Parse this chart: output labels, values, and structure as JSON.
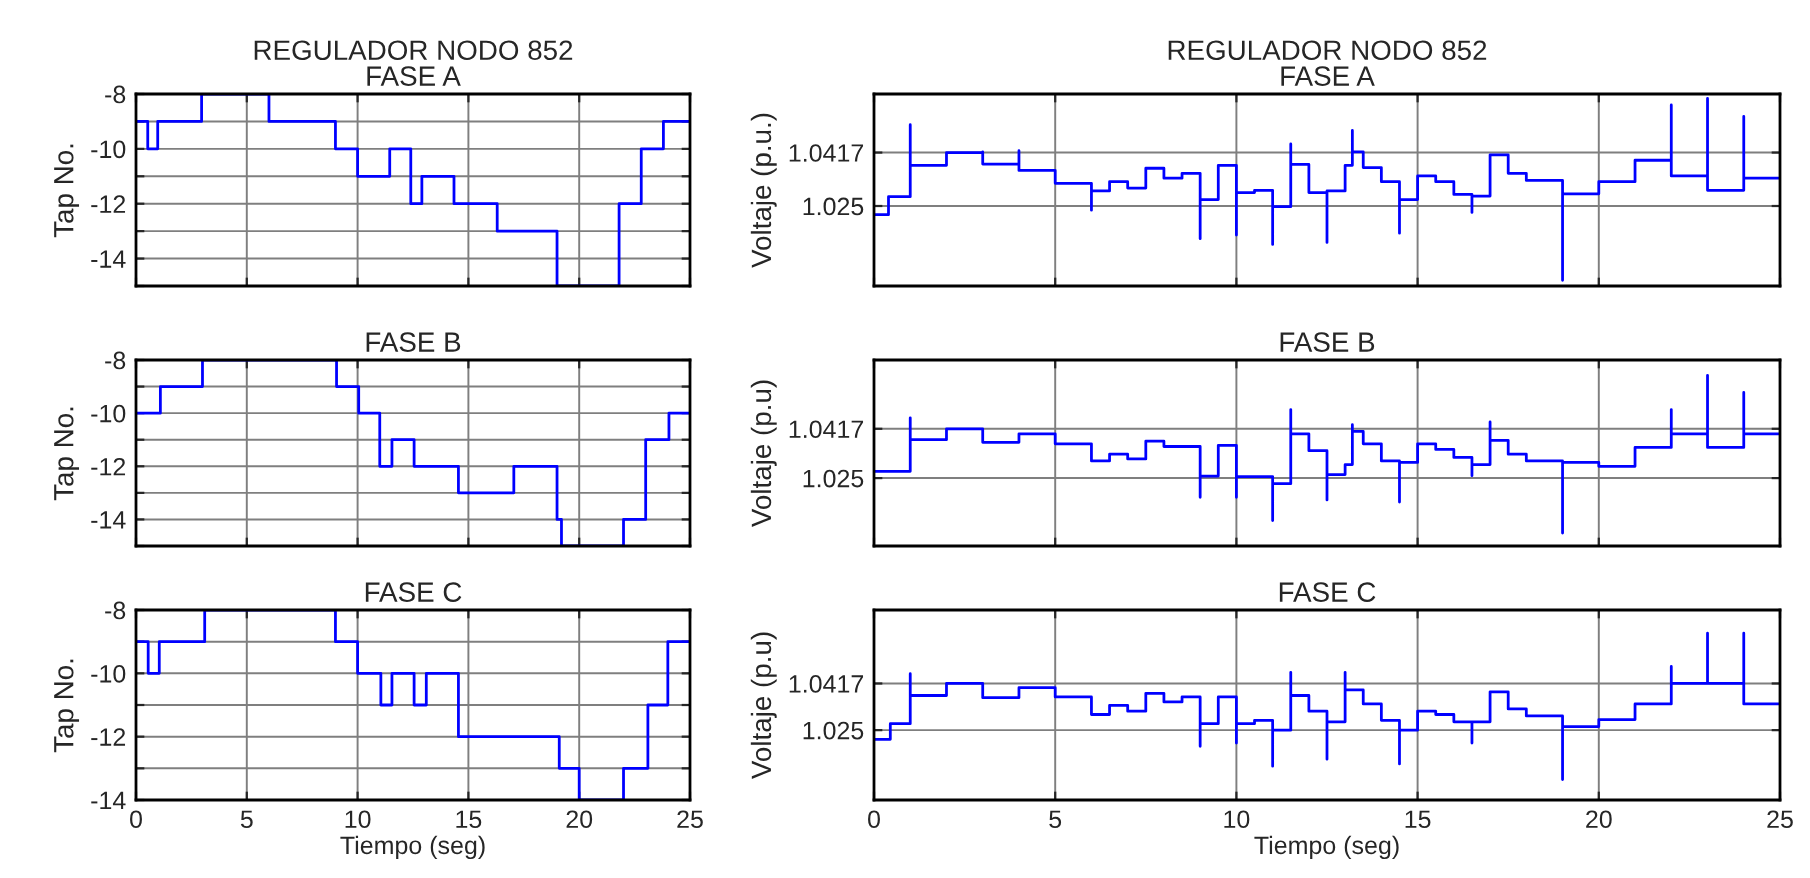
{
  "chart_data": [
    {
      "type": "step",
      "title": "REGULADOR NODO 852\nFASE A",
      "ylabel": "Tap No.",
      "xlim": [
        0,
        25
      ],
      "xticks": [
        0,
        5,
        10,
        15,
        20,
        25
      ],
      "ylim": [
        -15,
        -8
      ],
      "yticks": [
        -8,
        {
          "value": -9,
          "label": null
        },
        -10,
        {
          "value": -11,
          "label": null
        },
        -12,
        {
          "value": -13,
          "label": null
        },
        -14,
        {
          "value": -15,
          "label": null
        }
      ],
      "grid": true,
      "tick_labels": "y",
      "series": [
        {
          "color": "#0000ff",
          "x": [
            0,
            0.53,
            0.98,
            2.96,
            6.0,
            9.0,
            10.0,
            11.45,
            12.4,
            12.9,
            14.35,
            16.3,
            19.0,
            21.8,
            22.8,
            23.8,
            25
          ],
          "values": [
            -9,
            -10,
            -9,
            -8,
            -9,
            -10,
            -11,
            -10,
            -12,
            -11,
            -12,
            -13,
            -15,
            -12,
            -10,
            -9,
            -9
          ]
        }
      ]
    },
    {
      "type": "step",
      "title": "REGULADOR NODO 852\nFASE A",
      "ylabel": "Voltaje (p.u.)",
      "xlim": [
        0,
        25
      ],
      "xticks": [
        0,
        5,
        10,
        15,
        20,
        25
      ],
      "ylim": [
        1.0,
        1.06
      ],
      "yticks": [
        1.025,
        1.0417
      ],
      "grid": true,
      "tick_labels": "y",
      "series": [
        {
          "color": "#0000ff",
          "x": [
            0,
            0.4,
            1.0,
            1.0,
            2.0,
            3.0,
            3.0,
            4.0,
            4.0,
            5.0,
            6.0,
            6.0,
            6.5,
            7.0,
            7.5,
            8.0,
            8.5,
            9.0,
            9.0,
            9.5,
            10.0,
            10.0,
            10.5,
            11.0,
            11.0,
            11.5,
            11.5,
            12.0,
            12.5,
            12.5,
            13.0,
            13.2,
            13.2,
            13.5,
            14.0,
            14.5,
            14.5,
            15.0,
            15.5,
            16.0,
            16.5,
            16.5,
            17.0,
            17.5,
            18.0,
            19.0,
            19.0,
            20.0,
            21.0,
            22.0,
            22.0,
            23.0,
            23.0,
            24.0,
            24.0,
            25.0
          ],
          "values": [
            1.0223,
            1.0279,
            1.0504,
            1.0377,
            1.0417,
            1.0419,
            1.0381,
            1.0423,
            1.0361,
            1.0321,
            1.0237,
            1.0297,
            1.0326,
            1.0306,
            1.0368,
            1.0337,
            1.0352,
            1.0148,
            1.027,
            1.0377,
            1.0159,
            1.0292,
            1.0299,
            1.013,
            1.0248,
            1.0444,
            1.038,
            1.0292,
            1.0136,
            1.0297,
            1.0377,
            1.0486,
            1.0419,
            1.037,
            1.0326,
            1.0165,
            1.027,
            1.0344,
            1.0326,
            1.0286,
            1.023,
            1.0281,
            1.041,
            1.0352,
            1.033,
            1.0018,
            1.0288,
            1.0326,
            1.0393,
            1.0566,
            1.0344,
            1.0586,
            1.0299,
            1.053,
            1.0337,
            1.0337
          ]
        }
      ]
    },
    {
      "type": "step",
      "title": "FASE B",
      "ylabel": "Tap No.",
      "xlim": [
        0,
        25
      ],
      "xticks": [
        0,
        5,
        10,
        15,
        20,
        25
      ],
      "ylim": [
        -15,
        -8
      ],
      "yticks": [
        -8,
        {
          "value": -9,
          "label": null
        },
        -10,
        {
          "value": -11,
          "label": null
        },
        -12,
        {
          "value": -13,
          "label": null
        },
        -14,
        {
          "value": -15,
          "label": null
        }
      ],
      "grid": true,
      "tick_labels": "y",
      "series": [
        {
          "color": "#0000ff",
          "x": [
            0,
            1.1,
            3.0,
            9.05,
            10.05,
            11.0,
            11.55,
            12.55,
            14.55,
            17.05,
            19.0,
            19.2,
            22.0,
            23.0,
            24.05,
            25
          ],
          "values": [
            -10,
            -9,
            -8,
            -9,
            -10,
            -12,
            -11,
            -12,
            -13,
            -12,
            -14,
            -15,
            -14,
            -11,
            -10,
            -10
          ]
        }
      ]
    },
    {
      "type": "step",
      "title": "FASE B",
      "ylabel": "Voltaje (p.u)",
      "xlim": [
        0,
        25
      ],
      "xticks": [
        0,
        5,
        10,
        15,
        20,
        25
      ],
      "ylim": [
        1.002,
        1.065
      ],
      "yticks": [
        1.025,
        1.0417
      ],
      "grid": true,
      "tick_labels": "y",
      "series": [
        {
          "color": "#0000ff",
          "x": [
            0,
            1.0,
            1.0,
            2.0,
            3.0,
            4.0,
            5.0,
            6.0,
            6.5,
            7.0,
            7.5,
            8.0,
            9.0,
            9.0,
            9.5,
            10.0,
            10.0,
            11.0,
            11.0,
            11.5,
            11.5,
            12.0,
            12.5,
            12.5,
            13.0,
            13.2,
            13.2,
            13.5,
            14.0,
            14.5,
            14.5,
            15.0,
            15.5,
            16.0,
            16.5,
            16.5,
            17.0,
            17.0,
            17.5,
            18.0,
            19.0,
            19.0,
            20.0,
            21.0,
            22.0,
            22.0,
            23.0,
            23.0,
            24.0,
            24.0,
            25.0
          ],
          "values": [
            1.0273,
            1.0454,
            1.038,
            1.0417,
            1.0371,
            1.04,
            1.0366,
            1.0308,
            1.0331,
            1.0315,
            1.0375,
            1.0357,
            1.0185,
            1.0257,
            1.0361,
            1.0185,
            1.0255,
            1.0106,
            1.0231,
            1.0482,
            1.04,
            1.0343,
            1.0176,
            1.0262,
            1.0296,
            1.0431,
            1.0408,
            1.0366,
            1.0308,
            1.0169,
            1.0303,
            1.0366,
            1.0347,
            1.032,
            1.0258,
            1.0296,
            1.044,
            1.0378,
            1.0331,
            1.0308,
            1.0064,
            1.0303,
            1.029,
            1.0354,
            1.0482,
            1.04,
            1.0598,
            1.0354,
            1.054,
            1.04,
            1.04
          ]
        }
      ]
    },
    {
      "type": "step",
      "title": "FASE C",
      "ylabel": "Tap No.",
      "xlabel": "Tiempo (seg)",
      "xlim": [
        0,
        25
      ],
      "xticks": [
        0,
        5,
        10,
        15,
        20,
        25
      ],
      "ylim": [
        -14,
        -8
      ],
      "yticks": [
        -8,
        {
          "value": -9,
          "label": null
        },
        -10,
        {
          "value": -11,
          "label": null
        },
        -12,
        {
          "value": -13,
          "label": null
        },
        -14
      ],
      "grid": true,
      "series": [
        {
          "color": "#0000ff",
          "x": [
            0,
            0.55,
            1.05,
            3.1,
            9.0,
            10.0,
            11.05,
            11.55,
            12.55,
            13.1,
            14.55,
            19.1,
            20.0,
            22.0,
            23.1,
            24.0,
            25
          ],
          "values": [
            -9,
            -10,
            -9,
            -8,
            -9,
            -10,
            -11,
            -10,
            -11,
            -10,
            -12,
            -13,
            -14,
            -13,
            -11,
            -9,
            -9
          ]
        }
      ]
    },
    {
      "type": "step",
      "title": "FASE C",
      "ylabel": "Voltaje (p.u)",
      "xlabel": "Tiempo (seg)",
      "xlim": [
        0,
        25
      ],
      "xticks": [
        0,
        5,
        10,
        15,
        20,
        25
      ],
      "ylim": [
        1.0,
        1.068
      ],
      "yticks": [
        1.025,
        1.0417
      ],
      "grid": true,
      "series": [
        {
          "color": "#0000ff",
          "x": [
            0,
            0.45,
            1.0,
            1.0,
            2.0,
            3.0,
            4.0,
            5.0,
            6.0,
            6.5,
            7.0,
            7.5,
            8.0,
            8.5,
            9.0,
            9.0,
            9.5,
            10.0,
            10.0,
            10.5,
            11.0,
            11.0,
            11.5,
            11.5,
            12.0,
            12.5,
            12.5,
            13.0,
            13.0,
            13.5,
            14.0,
            14.5,
            14.5,
            15.0,
            15.5,
            16.0,
            16.5,
            16.5,
            17.0,
            17.5,
            18.0,
            19.0,
            19.0,
            20.0,
            21.0,
            22.0,
            22.0,
            23.0,
            23.0,
            24.0,
            24.0,
            25.0
          ],
          "values": [
            1.0217,
            1.0273,
            1.0452,
            1.0374,
            1.0417,
            1.0366,
            1.0402,
            1.0369,
            1.0306,
            1.0339,
            1.0318,
            1.0382,
            1.0351,
            1.0369,
            1.0192,
            1.0273,
            1.0369,
            1.0204,
            1.0273,
            1.0285,
            1.0121,
            1.025,
            1.0457,
            1.0374,
            1.0318,
            1.0146,
            1.028,
            1.0457,
            1.0394,
            1.0344,
            1.0285,
            1.0129,
            1.025,
            1.0318,
            1.0306,
            1.028,
            1.0204,
            1.028,
            1.0387,
            1.0326,
            1.0301,
            1.0073,
            1.0263,
            1.0288,
            1.0344,
            1.0478,
            1.0417,
            1.0597,
            1.0417,
            1.0597,
            1.0344,
            1.0344
          ]
        }
      ]
    }
  ]
}
